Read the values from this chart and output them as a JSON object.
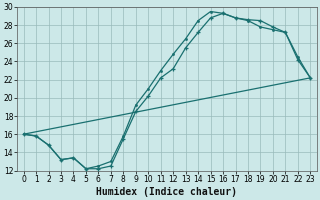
{
  "xlabel": "Humidex (Indice chaleur)",
  "bg_color": "#cce8e8",
  "grid_color": "#99bbbb",
  "line_color": "#1a7070",
  "xlim": [
    -0.5,
    23.5
  ],
  "ylim": [
    12,
    30
  ],
  "xticks": [
    0,
    1,
    2,
    3,
    4,
    5,
    6,
    7,
    8,
    9,
    10,
    11,
    12,
    13,
    14,
    15,
    16,
    17,
    18,
    19,
    20,
    21,
    22,
    23
  ],
  "yticks": [
    12,
    14,
    16,
    18,
    20,
    22,
    24,
    26,
    28,
    30
  ],
  "line1_x": [
    0,
    1,
    2,
    3,
    4,
    5,
    6,
    7,
    8,
    9,
    10,
    11,
    12,
    13,
    14,
    15,
    16,
    17,
    18,
    19,
    20,
    21,
    22,
    23
  ],
  "line1_y": [
    16.0,
    15.8,
    14.8,
    13.2,
    13.4,
    12.2,
    12.2,
    12.5,
    15.5,
    18.5,
    20.2,
    22.2,
    23.2,
    25.5,
    27.2,
    28.8,
    29.3,
    28.8,
    28.6,
    28.5,
    27.8,
    27.2,
    24.2,
    22.2
  ],
  "line2_x": [
    0,
    1,
    2,
    3,
    4,
    5,
    6,
    7,
    8,
    9,
    10,
    11,
    12,
    13,
    14,
    15,
    16,
    17,
    18,
    19,
    20,
    21,
    22,
    23
  ],
  "line2_y": [
    16.0,
    15.8,
    14.8,
    13.2,
    13.4,
    12.2,
    12.5,
    13.0,
    15.8,
    19.2,
    21.0,
    23.0,
    24.8,
    26.5,
    28.5,
    29.5,
    29.3,
    28.8,
    28.5,
    27.8,
    27.5,
    27.2,
    24.5,
    22.2
  ],
  "line3_x": [
    0,
    23
  ],
  "line3_y": [
    16.0,
    22.2
  ]
}
